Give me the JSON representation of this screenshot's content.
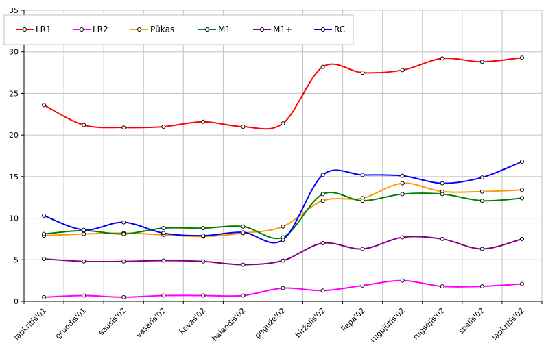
{
  "chart_data": {
    "type": "line",
    "title": "",
    "xlabel": "",
    "ylabel": "",
    "ylim": [
      0,
      35
    ],
    "yticks": [
      0,
      5,
      10,
      15,
      20,
      25,
      30,
      35
    ],
    "grid": true,
    "legend_position": "top",
    "smooth": true,
    "categories": [
      "lapkritis'01",
      "gruodis'01",
      "sausis'02",
      "vasaris'02",
      "kovas'02",
      "balandis'02",
      "gegužė'02",
      "birželis'02",
      "liepa'02",
      "rugpjūtis'02",
      "rugsėjis'02",
      "spalis'02",
      "lapkritis'02"
    ],
    "series": [
      {
        "name": "LR1",
        "color": "#ff0000",
        "values": [
          23.6,
          21.2,
          20.9,
          21.0,
          21.6,
          21.0,
          21.4,
          28.2,
          27.5,
          27.8,
          29.2,
          28.8,
          29.3
        ]
      },
      {
        "name": "LR2",
        "color": "#ff00ff",
        "values": [
          0.5,
          0.7,
          0.5,
          0.7,
          0.7,
          0.7,
          1.6,
          1.3,
          1.9,
          2.5,
          1.8,
          1.8,
          2.1
        ]
      },
      {
        "name": "Pūkas",
        "color": "#ff9900",
        "values": [
          7.9,
          8.1,
          8.2,
          8.0,
          7.8,
          8.2,
          9.0,
          12.1,
          12.4,
          14.2,
          13.2,
          13.2,
          13.4
        ]
      },
      {
        "name": "M1",
        "color": "#008000",
        "values": [
          8.1,
          8.5,
          8.1,
          8.8,
          8.8,
          9.0,
          7.7,
          12.9,
          12.1,
          12.9,
          12.9,
          12.1,
          12.4
        ]
      },
      {
        "name": "M1+",
        "color": "#800080",
        "values": [
          5.1,
          4.8,
          4.8,
          4.9,
          4.8,
          4.4,
          4.9,
          7.0,
          6.3,
          7.7,
          7.5,
          6.3,
          7.5
        ]
      },
      {
        "name": "RC",
        "color": "#0000ff",
        "values": [
          10.3,
          8.6,
          9.5,
          8.2,
          7.9,
          8.3,
          7.4,
          15.2,
          15.2,
          15.1,
          14.2,
          14.9,
          16.8
        ]
      }
    ]
  }
}
